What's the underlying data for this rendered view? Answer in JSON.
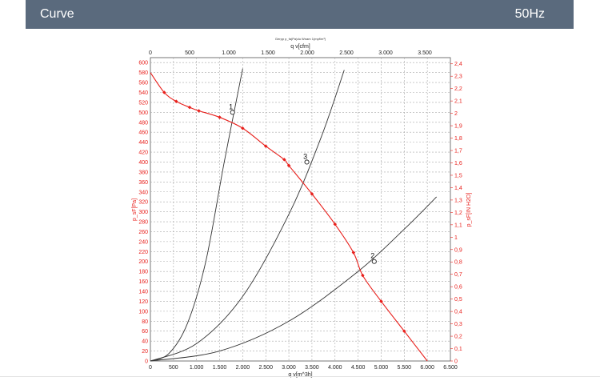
{
  "header": {
    "title": "Curve",
    "frequency": "50Hz"
  },
  "colors": {
    "header_bg": "#5a6a7d",
    "curve": "#e8201c",
    "system_curve": "#333333",
    "grid": "#a8a8a8"
  },
  "chart_data": {
    "type": "line",
    "note_text": "Gerpp p_fa(Pa)du Wnam 1(mpf/m³)",
    "x_bottom": {
      "label": "q v[m^3h]",
      "range": [
        0,
        6500
      ],
      "ticks": [
        "0",
        "500",
        "1.000",
        "1.500",
        "2.000",
        "2.500",
        "3.000",
        "3.500",
        "4.000",
        "4.500",
        "5.000",
        "5.500",
        "6.000",
        "6.500"
      ]
    },
    "x_top": {
      "label": "q v[cfm]",
      "range": [
        0,
        3826
      ],
      "ticks": [
        "0",
        "500",
        "1.000",
        "1.500",
        "2.000",
        "2.500",
        "3.000",
        "3.500"
      ]
    },
    "y_left": {
      "label": "p_sF[Pa]",
      "range": [
        0,
        610
      ],
      "ticks": [
        "0",
        "20",
        "40",
        "60",
        "80",
        "100",
        "120",
        "140",
        "160",
        "180",
        "200",
        "220",
        "240",
        "260",
        "280",
        "300",
        "320",
        "340",
        "360",
        "380",
        "400",
        "420",
        "440",
        "460",
        "480",
        "500",
        "520",
        "540",
        "560",
        "580",
        "600"
      ]
    },
    "y_right": {
      "label": "p_sF[IN H2O]",
      "range": [
        0,
        2.45
      ],
      "ticks": [
        "0",
        "0,1",
        "0,2",
        "0,3",
        "0,4",
        "0,5",
        "0,6",
        "0,7",
        "0,8",
        "0,9",
        "1",
        "1,1",
        "1,2",
        "1,3",
        "1,4",
        "1,5",
        "1,6",
        "1,7",
        "1,8",
        "1,9",
        "2",
        "2,1",
        "2,2",
        "2,3",
        "2,4"
      ]
    },
    "grid": true,
    "series": [
      {
        "name": "p_sF",
        "points": [
          [
            0,
            580
          ],
          [
            300,
            540
          ],
          [
            560,
            522
          ],
          [
            850,
            510
          ],
          [
            1050,
            503
          ],
          [
            1500,
            490
          ],
          [
            2000,
            468
          ],
          [
            2500,
            432
          ],
          [
            2900,
            405
          ],
          [
            3000,
            393
          ],
          [
            3500,
            336
          ],
          [
            4000,
            275
          ],
          [
            4400,
            218
          ],
          [
            4600,
            172
          ],
          [
            5000,
            120
          ],
          [
            5500,
            60
          ],
          [
            6000,
            0
          ]
        ]
      }
    ],
    "system_curves": [
      {
        "label": "1",
        "points": [
          [
            0,
            0
          ],
          [
            400,
            15
          ],
          [
            800,
            75
          ],
          [
            1200,
            200
          ],
          [
            1600,
            400
          ],
          [
            2000,
            588
          ]
        ]
      },
      {
        "label": "3",
        "points": [
          [
            0,
            0
          ],
          [
            1000,
            35
          ],
          [
            2000,
            130
          ],
          [
            3000,
            295
          ],
          [
            3700,
            450
          ],
          [
            4200,
            585
          ]
        ]
      },
      {
        "label": "2",
        "points": [
          [
            0,
            0
          ],
          [
            1500,
            20
          ],
          [
            3000,
            80
          ],
          [
            4500,
            180
          ],
          [
            5500,
            265
          ],
          [
            6200,
            330
          ]
        ]
      }
    ],
    "intersections": [
      {
        "label": "1",
        "x": 1780,
        "y": 500
      },
      {
        "label": "3",
        "x": 3390,
        "y": 400
      },
      {
        "label": "2",
        "x": 4850,
        "y": 200
      }
    ]
  }
}
